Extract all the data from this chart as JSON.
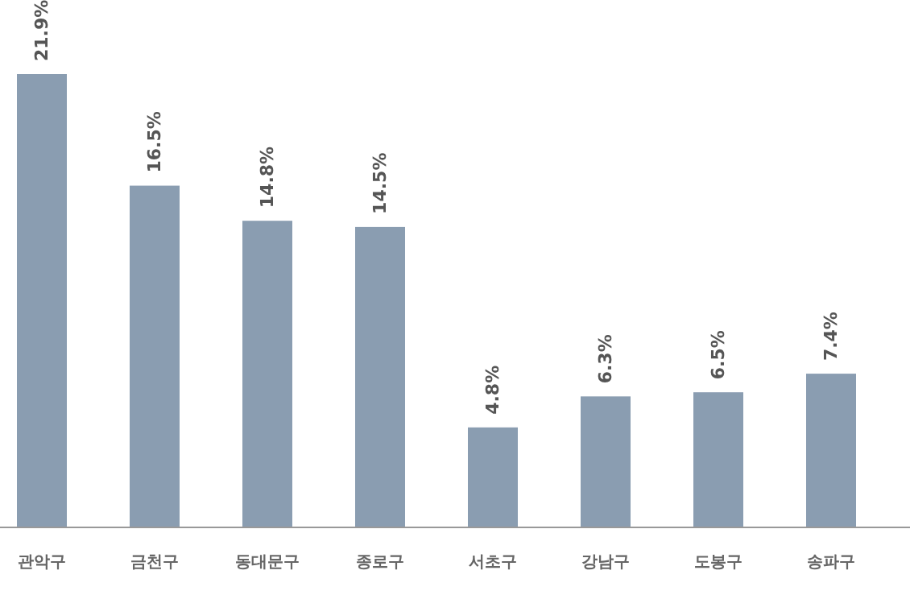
{
  "chart_data": {
    "type": "bar",
    "categories": [
      "관악구",
      "금천구",
      "동대문구",
      "종로구",
      "서초구",
      "강남구",
      "도봉구",
      "송파구"
    ],
    "values": [
      21.9,
      16.5,
      14.8,
      14.5,
      4.8,
      6.3,
      6.5,
      7.4
    ],
    "value_labels": [
      "21.9%",
      "16.5%",
      "14.8%",
      "14.5%",
      "4.8%",
      "6.3%",
      "6.5%",
      "7.4%"
    ],
    "color": "#8a9db1"
  }
}
